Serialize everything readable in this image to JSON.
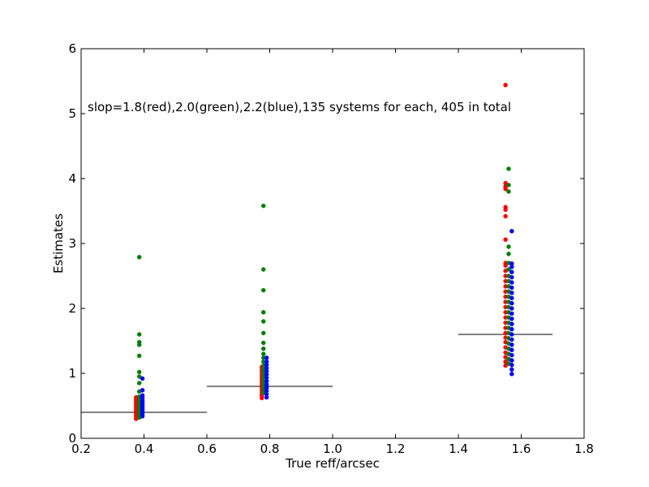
{
  "chart_data": {
    "type": "scatter",
    "title": "",
    "xlabel": "True reff/arcsec",
    "ylabel": "Estimates",
    "xlim": [
      0.2,
      1.8
    ],
    "ylim": [
      0,
      6
    ],
    "xticks": [
      "0.2",
      "0.4",
      "0.6",
      "0.8",
      "1.0",
      "1.2",
      "1.4",
      "1.6",
      "1.8"
    ],
    "yticks": [
      "0",
      "1",
      "2",
      "3",
      "4",
      "5",
      "6"
    ],
    "grid": false,
    "annotation": "slop=1.8(red),2.0(green),2.2(blue),135 systems for each, 405 in total",
    "colors": {
      "red": "#ff0000",
      "green": "#008000",
      "blue": "#0000ff",
      "line": "#000000"
    },
    "reference_lines": [
      {
        "x": [
          0.2,
          0.6
        ],
        "y": 0.4
      },
      {
        "x": [
          0.6,
          1.0
        ],
        "y": 0.8
      },
      {
        "x": [
          1.4,
          1.7
        ],
        "y": 1.6
      }
    ],
    "series": [
      {
        "color": "red",
        "points": [
          [
            0.375,
            0.3
          ],
          [
            0.375,
            0.33
          ],
          [
            0.375,
            0.36
          ],
          [
            0.375,
            0.39
          ],
          [
            0.375,
            0.42
          ],
          [
            0.375,
            0.45
          ],
          [
            0.375,
            0.48
          ],
          [
            0.375,
            0.51
          ],
          [
            0.375,
            0.54
          ],
          [
            0.375,
            0.57
          ],
          [
            0.375,
            0.6
          ],
          [
            0.375,
            0.63
          ],
          [
            0.775,
            0.62
          ],
          [
            0.775,
            0.66
          ],
          [
            0.775,
            0.7
          ],
          [
            0.775,
            0.74
          ],
          [
            0.775,
            0.78
          ],
          [
            0.775,
            0.82
          ],
          [
            0.775,
            0.86
          ],
          [
            0.775,
            0.9
          ],
          [
            0.775,
            0.94
          ],
          [
            0.775,
            0.98
          ],
          [
            0.775,
            1.02
          ],
          [
            0.775,
            1.06
          ],
          [
            0.775,
            1.1
          ],
          [
            1.55,
            1.12
          ],
          [
            1.55,
            1.18
          ],
          [
            1.55,
            1.25
          ],
          [
            1.55,
            1.32
          ],
          [
            1.55,
            1.4
          ],
          [
            1.55,
            1.48
          ],
          [
            1.55,
            1.55
          ],
          [
            1.55,
            1.62
          ],
          [
            1.55,
            1.7
          ],
          [
            1.55,
            1.78
          ],
          [
            1.55,
            1.86
          ],
          [
            1.55,
            1.94
          ],
          [
            1.55,
            2.02
          ],
          [
            1.55,
            2.1
          ],
          [
            1.55,
            2.18
          ],
          [
            1.55,
            2.26
          ],
          [
            1.55,
            2.34
          ],
          [
            1.55,
            2.42
          ],
          [
            1.55,
            2.5
          ],
          [
            1.55,
            2.58
          ],
          [
            1.55,
            2.66
          ],
          [
            1.55,
            2.7
          ],
          [
            1.55,
            3.06
          ],
          [
            1.55,
            3.42
          ],
          [
            1.55,
            3.52
          ],
          [
            1.55,
            3.56
          ],
          [
            1.55,
            3.84
          ],
          [
            1.55,
            3.88
          ],
          [
            1.55,
            3.93
          ],
          [
            1.55,
            5.44
          ]
        ]
      },
      {
        "color": "green",
        "points": [
          [
            0.385,
            0.32
          ],
          [
            0.385,
            0.36
          ],
          [
            0.385,
            0.4
          ],
          [
            0.385,
            0.44
          ],
          [
            0.385,
            0.48
          ],
          [
            0.385,
            0.52
          ],
          [
            0.385,
            0.56
          ],
          [
            0.385,
            0.6
          ],
          [
            0.385,
            0.64
          ],
          [
            0.385,
            0.72
          ],
          [
            0.385,
            0.85
          ],
          [
            0.385,
            0.95
          ],
          [
            0.385,
            1.02
          ],
          [
            0.385,
            1.27
          ],
          [
            0.385,
            1.44
          ],
          [
            0.385,
            1.48
          ],
          [
            0.385,
            1.6
          ],
          [
            0.385,
            2.79
          ],
          [
            0.78,
            0.7
          ],
          [
            0.78,
            0.76
          ],
          [
            0.78,
            0.82
          ],
          [
            0.78,
            0.88
          ],
          [
            0.78,
            0.94
          ],
          [
            0.78,
            1.0
          ],
          [
            0.78,
            1.06
          ],
          [
            0.78,
            1.12
          ],
          [
            0.78,
            1.18
          ],
          [
            0.78,
            1.24
          ],
          [
            0.78,
            1.3
          ],
          [
            0.78,
            1.38
          ],
          [
            0.78,
            1.47
          ],
          [
            0.78,
            1.62
          ],
          [
            0.78,
            1.8
          ],
          [
            0.78,
            1.94
          ],
          [
            0.78,
            2.28
          ],
          [
            0.78,
            2.6
          ],
          [
            0.78,
            3.58
          ],
          [
            1.56,
            1.15
          ],
          [
            1.56,
            1.22
          ],
          [
            1.56,
            1.3
          ],
          [
            1.56,
            1.38
          ],
          [
            1.56,
            1.46
          ],
          [
            1.56,
            1.54
          ],
          [
            1.56,
            1.62
          ],
          [
            1.56,
            1.7
          ],
          [
            1.56,
            1.78
          ],
          [
            1.56,
            1.86
          ],
          [
            1.56,
            1.94
          ],
          [
            1.56,
            2.02
          ],
          [
            1.56,
            2.1
          ],
          [
            1.56,
            2.18
          ],
          [
            1.56,
            2.26
          ],
          [
            1.56,
            2.34
          ],
          [
            1.56,
            2.42
          ],
          [
            1.56,
            2.5
          ],
          [
            1.56,
            2.6
          ],
          [
            1.56,
            2.7
          ],
          [
            1.56,
            2.84
          ],
          [
            1.56,
            2.95
          ],
          [
            1.56,
            3.8
          ],
          [
            1.56,
            3.9
          ],
          [
            1.56,
            4.15
          ]
        ]
      },
      {
        "color": "blue",
        "points": [
          [
            0.395,
            0.34
          ],
          [
            0.395,
            0.37
          ],
          [
            0.395,
            0.4
          ],
          [
            0.395,
            0.43
          ],
          [
            0.395,
            0.46
          ],
          [
            0.395,
            0.49
          ],
          [
            0.395,
            0.52
          ],
          [
            0.395,
            0.55
          ],
          [
            0.395,
            0.58
          ],
          [
            0.395,
            0.62
          ],
          [
            0.395,
            0.66
          ],
          [
            0.395,
            0.74
          ],
          [
            0.395,
            0.92
          ],
          [
            0.79,
            0.63
          ],
          [
            0.79,
            0.68
          ],
          [
            0.79,
            0.73
          ],
          [
            0.79,
            0.78
          ],
          [
            0.79,
            0.83
          ],
          [
            0.79,
            0.88
          ],
          [
            0.79,
            0.93
          ],
          [
            0.79,
            0.98
          ],
          [
            0.79,
            1.03
          ],
          [
            0.79,
            1.08
          ],
          [
            0.79,
            1.13
          ],
          [
            0.79,
            1.18
          ],
          [
            0.79,
            1.24
          ],
          [
            1.57,
            0.99
          ],
          [
            1.57,
            1.06
          ],
          [
            1.57,
            1.13
          ],
          [
            1.57,
            1.2
          ],
          [
            1.57,
            1.28
          ],
          [
            1.57,
            1.36
          ],
          [
            1.57,
            1.44
          ],
          [
            1.57,
            1.52
          ],
          [
            1.57,
            1.6
          ],
          [
            1.57,
            1.68
          ],
          [
            1.57,
            1.76
          ],
          [
            1.57,
            1.84
          ],
          [
            1.57,
            1.92
          ],
          [
            1.57,
            2.0
          ],
          [
            1.57,
            2.08
          ],
          [
            1.57,
            2.16
          ],
          [
            1.57,
            2.24
          ],
          [
            1.57,
            2.32
          ],
          [
            1.57,
            2.4
          ],
          [
            1.57,
            2.48
          ],
          [
            1.57,
            2.56
          ],
          [
            1.57,
            2.64
          ],
          [
            1.57,
            2.69
          ],
          [
            1.57,
            3.19
          ]
        ]
      }
    ]
  }
}
